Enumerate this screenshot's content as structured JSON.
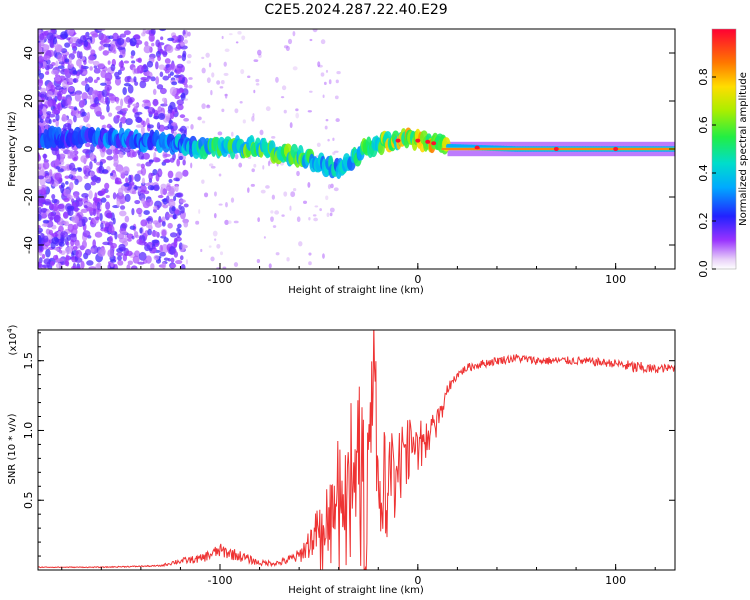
{
  "chart_data": [
    {
      "type": "heatmap",
      "title": "C2E5.2024.287.22.40.E29",
      "xlabel": "Height of straight line (km)",
      "ylabel": "Frequency (Hz)",
      "xlim": [
        -192,
        130
      ],
      "ylim": [
        -50,
        50
      ],
      "x_ticks": [
        -100,
        0,
        100
      ],
      "x_tick_labels": [
        "-100",
        "0",
        "100"
      ],
      "y_ticks": [
        -40,
        -20,
        0,
        20,
        40
      ],
      "y_tick_labels": [
        "-40",
        "-20",
        "0",
        "20",
        "40"
      ],
      "colorbar": {
        "label": "Normalized spectral amplitude",
        "range": [
          0,
          1
        ],
        "ticks": [
          0.0,
          0.2,
          0.4,
          0.6,
          0.8
        ],
        "tick_labels": [
          "0.0",
          "0.2",
          "0.4",
          "0.6",
          "0.8"
        ]
      },
      "ridge": {
        "x": [
          -190,
          -170,
          -150,
          -130,
          -115,
          -100,
          -90,
          -80,
          -70,
          -60,
          -50,
          -40,
          -33,
          -25,
          -15,
          -5,
          5,
          15,
          50,
          100,
          130
        ],
        "y": [
          5,
          5,
          4,
          3,
          1,
          0,
          1,
          1,
          -2,
          -3,
          -6,
          -8,
          -4,
          1,
          3,
          4,
          3,
          1,
          0,
          0,
          0
        ],
        "amplitude": [
          0.25,
          0.25,
          0.3,
          0.3,
          0.4,
          0.5,
          0.55,
          0.55,
          0.55,
          0.55,
          0.45,
          0.4,
          0.45,
          0.55,
          0.65,
          0.7,
          0.75,
          0.8,
          0.85,
          0.85,
          0.85
        ]
      }
    },
    {
      "type": "line",
      "title": "",
      "xlabel": "Height of straight line (km)",
      "ylabel": "SNR (10 * v/v)",
      "y_multiplier": "(x10",
      "y_multiplier_exp": "4",
      "xlim": [
        -192,
        130
      ],
      "ylim": [
        0,
        1.72
      ],
      "x_ticks": [
        -100,
        0,
        100
      ],
      "x_tick_labels": [
        "-100",
        "0",
        "100"
      ],
      "y_ticks": [
        0.5,
        1.0,
        1.5
      ],
      "y_tick_labels": [
        "0.5",
        "1.0",
        "1.5"
      ],
      "series": [
        {
          "name": "SNR",
          "color": "#ee3333",
          "x": [
            -192,
            -160,
            -130,
            -122,
            -110,
            -100,
            -90,
            -80,
            -70,
            -60,
            -52,
            -45,
            -40,
            -35,
            -30,
            -25,
            -22,
            -20,
            -15,
            -10,
            -5,
            0,
            5,
            10,
            15,
            20,
            25,
            30,
            40,
            50,
            60,
            80,
            100,
            110,
            120,
            130
          ],
          "y": [
            0.02,
            0.02,
            0.03,
            0.06,
            0.08,
            0.14,
            0.1,
            0.05,
            0.05,
            0.1,
            0.25,
            0.45,
            0.6,
            0.8,
            0.9,
            0.75,
            1.7,
            0.7,
            0.75,
            0.85,
            0.95,
            0.95,
            1.0,
            1.1,
            1.3,
            1.4,
            1.45,
            1.47,
            1.5,
            1.52,
            1.5,
            1.5,
            1.48,
            1.45,
            1.44,
            1.45
          ],
          "noise": [
            0.003,
            0.003,
            0.005,
            0.02,
            0.03,
            0.05,
            0.04,
            0.02,
            0.02,
            0.05,
            0.15,
            0.25,
            0.35,
            0.45,
            0.45,
            0.4,
            0.2,
            0.3,
            0.25,
            0.2,
            0.15,
            0.12,
            0.08,
            0.06,
            0.04,
            0.03,
            0.03,
            0.03,
            0.03,
            0.03,
            0.03,
            0.03,
            0.03,
            0.05,
            0.03,
            0.03
          ]
        }
      ]
    }
  ]
}
